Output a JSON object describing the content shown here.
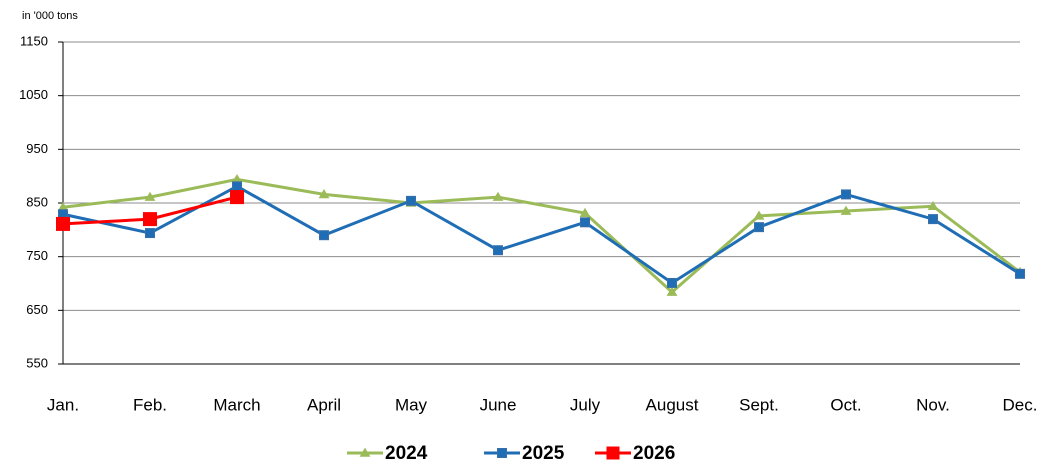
{
  "chart_data": {
    "type": "line",
    "y_axis_label": "in '000 tons",
    "categories": [
      "Jan.",
      "Feb.",
      "March",
      "April",
      "May",
      "June",
      "July",
      "August",
      "Sept.",
      "Oct.",
      "Nov.",
      "Dec."
    ],
    "series": [
      {
        "name": "2024",
        "color": "#9bbb59",
        "marker": "triangle",
        "values": [
          842,
          861,
          894,
          866,
          850,
          861,
          831,
          684,
          826,
          835,
          844,
          721
        ]
      },
      {
        "name": "2025",
        "color": "#1f6eb5",
        "marker": "square",
        "values": [
          829,
          794,
          881,
          790,
          854,
          762,
          814,
          701,
          805,
          866,
          820,
          718
        ]
      },
      {
        "name": "2026",
        "color": "#ff0000",
        "marker": "square",
        "values": [
          811,
          820,
          861,
          null,
          null,
          null,
          null,
          null,
          null,
          null,
          null,
          null
        ]
      }
    ],
    "ylim": [
      550,
      1150
    ],
    "yticks": [
      550,
      650,
      750,
      850,
      950,
      1050,
      1150
    ],
    "grid": true,
    "legend": "bottom"
  }
}
